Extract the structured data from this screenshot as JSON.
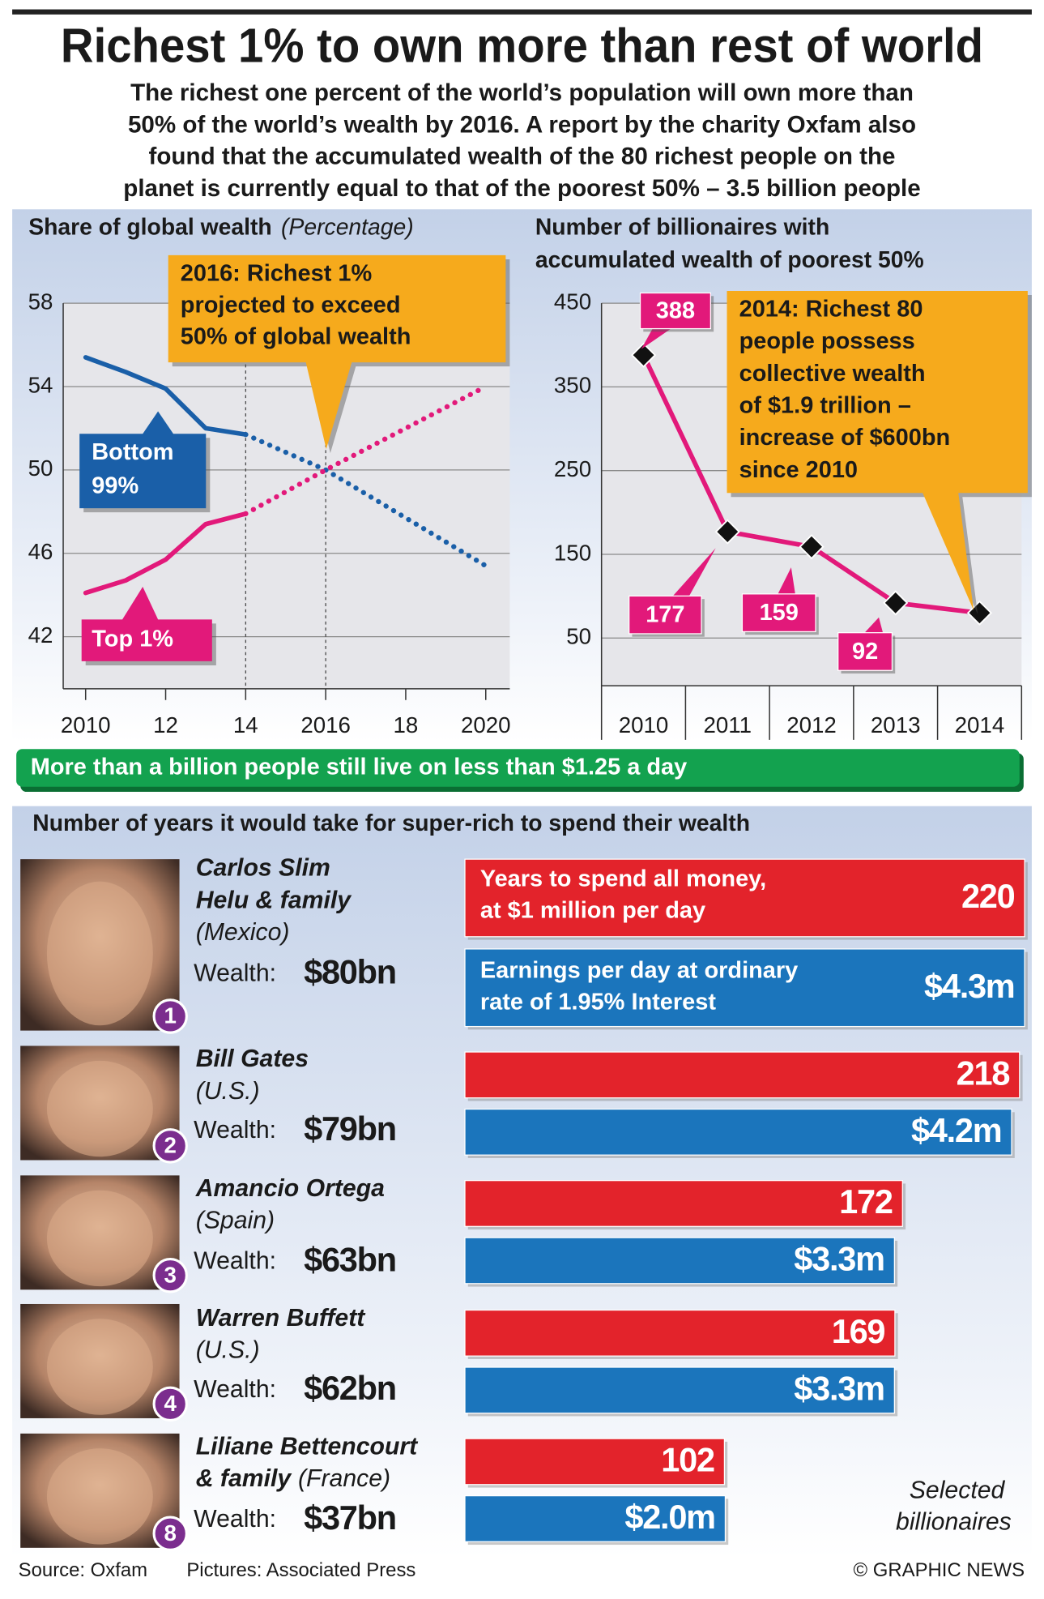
{
  "header": {
    "title": "Richest 1% to own more than rest of world",
    "subtitle": [
      "The richest one percent of the world’s population will own more than",
      "50% of the world’s wealth by 2016. A report by the charity Oxfam also",
      "found that the accumulated wealth of the 80 richest people on the",
      "planet is currently equal to that of the poorest 50% – 3.5 billion people"
    ]
  },
  "chart_data": [
    {
      "type": "line",
      "title": "Share of global wealth",
      "subtitle": "(Percentage)",
      "x": [
        2010,
        2011,
        2012,
        2013,
        2014,
        2016,
        2020
      ],
      "xlim": [
        2009.44,
        2020.6
      ],
      "xticks": [
        2010,
        {
          "value": 2012,
          "label": "12"
        },
        {
          "value": 2014,
          "label": "14"
        },
        2016,
        {
          "value": 2018,
          "label": "18"
        },
        2020
      ],
      "ylim": [
        39.5,
        58
      ],
      "yticks": [
        42,
        46,
        50,
        54,
        58
      ],
      "grid": true,
      "projection_from": 2014,
      "reference_lines": [
        2014,
        2016
      ],
      "series": [
        {
          "name": "Bottom 99%",
          "color": "#1a5fa8",
          "values": [
            55.4,
            54.7,
            53.9,
            52.0,
            51.7,
            50,
            45.4
          ]
        },
        {
          "name": "Top 1%",
          "color": "#e2197a",
          "values": [
            44.1,
            44.7,
            45.7,
            47.4,
            47.9,
            50,
            54.0
          ]
        }
      ],
      "annotation": [
        "2016: Richest 1%",
        "projected to exceed",
        "50% of global wealth"
      ]
    },
    {
      "type": "line",
      "title": [
        "Number of billionaires with",
        "accumulated wealth of poorest 50%"
      ],
      "categories": [
        "2010",
        "2011",
        "2012",
        "2013",
        "2014"
      ],
      "values": [
        388,
        177,
        159,
        92,
        80
      ],
      "value_labels": [
        "388",
        "177",
        "159",
        "92",
        null
      ],
      "color": "#e2197a",
      "markers": "diamond",
      "ylim": [
        -7,
        450
      ],
      "yticks": [
        50,
        150,
        250,
        350,
        450
      ],
      "grid": true,
      "annotation": [
        "2014: Richest 80",
        "people possess",
        "collective wealth",
        "of $1.9 trillion –",
        "increase of $600bn",
        "since 2010"
      ]
    },
    {
      "type": "bar",
      "orientation": "horizontal",
      "title": "Number of years it would take for super-rich to spend their wealth",
      "categories": [
        "Carlos Slim Helu & family",
        "Bill Gates",
        "Amancio Ortega",
        "Warren Buffett",
        "Liliane Bettencourt & family"
      ],
      "countries": [
        "(Mexico)",
        "(U.S.)",
        "(Spain)",
        "(U.S.)",
        "(France)"
      ],
      "ranks": [
        1,
        2,
        3,
        4,
        8
      ],
      "wealth_label": "Wealth:",
      "wealth": [
        "$80bn",
        "$79bn",
        "$63bn",
        "$62bn",
        "$37bn"
      ],
      "xlim": [
        0,
        220
      ],
      "x2lim": [
        0,
        4.3
      ],
      "series": [
        {
          "name": "Years to spend all money, at $1 million per day",
          "color": "#e3232b",
          "values": [
            220,
            218,
            172,
            169,
            102
          ]
        },
        {
          "name": "Earnings per day at ordinary rate of 1.95% Interest",
          "color": "#1b75bc",
          "axis": "x2",
          "values": [
            4.3,
            4.2,
            3.3,
            3.3,
            2.0
          ],
          "value_labels": [
            "$4.3m",
            "$4.2m",
            "$3.3m",
            "$3.3m",
            "$2.0m"
          ]
        }
      ],
      "note": "Selected billionaires"
    }
  ],
  "banner": "More than a billion people still live on less than $1.25 a day",
  "footer": {
    "source": "Source: Oxfam",
    "pictures": "Pictures: Associated Press",
    "credit": "© GRAPHIC NEWS"
  }
}
